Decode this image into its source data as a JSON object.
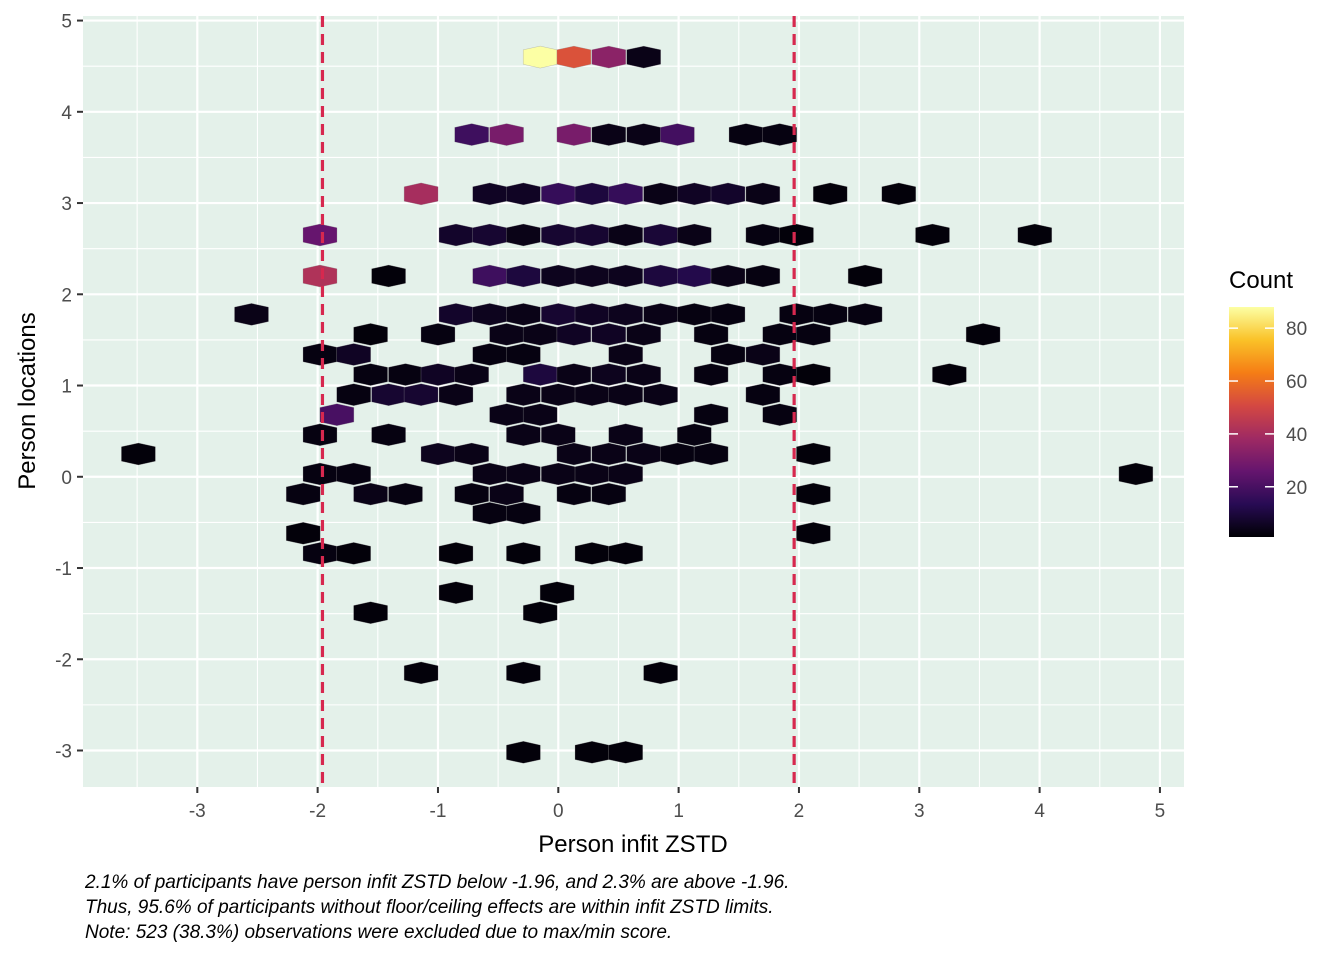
{
  "chart_data": {
    "type": "hexbin",
    "xlabel": "Person infit ZSTD",
    "ylabel": "Person locations",
    "xlim": [
      -3.95,
      5.2
    ],
    "ylim": [
      -3.4,
      5.05
    ],
    "x_ticks": [
      -3,
      -2,
      -1,
      0,
      1,
      2,
      3,
      4,
      5
    ],
    "y_ticks": [
      -3,
      -2,
      -1,
      0,
      1,
      2,
      3,
      4,
      5
    ],
    "x_tick_labels": [
      "-3",
      "-2",
      "-1",
      "0",
      "1",
      "2",
      "3",
      "4",
      "5"
    ],
    "y_tick_labels": [
      "-3",
      "-2",
      "-1",
      "0",
      "1",
      "2",
      "3",
      "4",
      "5"
    ],
    "reference_lines": [
      -1.96,
      1.96
    ],
    "reference_line_color": "#d7284f",
    "panel_background": "#e4f1ea",
    "grid": true,
    "legend": {
      "title": "Count",
      "position": "right",
      "breaks": [
        20,
        40,
        60,
        80
      ],
      "labels": [
        "20",
        "40",
        "60",
        "80"
      ],
      "min": 1,
      "max": 88,
      "palette": [
        "#000004",
        "#280b54",
        "#65156e",
        "#9f2a63",
        "#d44842",
        "#f57d15",
        "#fac228",
        "#fcffa4"
      ]
    },
    "bins": [
      {
        "x": -0.15,
        "y": 4.6,
        "count": 88
      },
      {
        "x": 0.13,
        "y": 4.6,
        "count": 53
      },
      {
        "x": 0.42,
        "y": 4.6,
        "count": 34
      },
      {
        "x": 0.71,
        "y": 4.6,
        "count": 4
      },
      {
        "x": -0.72,
        "y": 3.75,
        "count": 18
      },
      {
        "x": -0.43,
        "y": 3.75,
        "count": 30
      },
      {
        "x": 0.13,
        "y": 3.75,
        "count": 30
      },
      {
        "x": 0.42,
        "y": 3.75,
        "count": 4
      },
      {
        "x": 0.71,
        "y": 3.75,
        "count": 4
      },
      {
        "x": 0.99,
        "y": 3.75,
        "count": 19
      },
      {
        "x": 1.56,
        "y": 3.75,
        "count": 3
      },
      {
        "x": 1.84,
        "y": 3.75,
        "count": 3
      },
      {
        "x": -1.14,
        "y": 3.1,
        "count": 40
      },
      {
        "x": -0.57,
        "y": 3.1,
        "count": 6
      },
      {
        "x": -0.29,
        "y": 3.1,
        "count": 6
      },
      {
        "x": 0.0,
        "y": 3.1,
        "count": 16
      },
      {
        "x": 0.28,
        "y": 3.1,
        "count": 10
      },
      {
        "x": 0.56,
        "y": 3.1,
        "count": 16
      },
      {
        "x": 0.85,
        "y": 3.1,
        "count": 4
      },
      {
        "x": 1.13,
        "y": 3.1,
        "count": 6
      },
      {
        "x": 1.41,
        "y": 3.1,
        "count": 7
      },
      {
        "x": 1.7,
        "y": 3.1,
        "count": 4
      },
      {
        "x": 2.26,
        "y": 3.1,
        "count": 2
      },
      {
        "x": 2.83,
        "y": 3.1,
        "count": 2
      },
      {
        "x": -1.98,
        "y": 2.65,
        "count": 26
      },
      {
        "x": -0.85,
        "y": 2.65,
        "count": 7
      },
      {
        "x": -0.57,
        "y": 2.65,
        "count": 8
      },
      {
        "x": -0.29,
        "y": 2.65,
        "count": 4
      },
      {
        "x": 0.0,
        "y": 2.65,
        "count": 8
      },
      {
        "x": 0.28,
        "y": 2.65,
        "count": 8
      },
      {
        "x": 0.56,
        "y": 2.65,
        "count": 4
      },
      {
        "x": 0.85,
        "y": 2.65,
        "count": 9
      },
      {
        "x": 1.13,
        "y": 2.65,
        "count": 4
      },
      {
        "x": 1.7,
        "y": 2.65,
        "count": 3
      },
      {
        "x": 1.98,
        "y": 2.65,
        "count": 2
      },
      {
        "x": 3.11,
        "y": 2.65,
        "count": 2
      },
      {
        "x": 3.96,
        "y": 2.65,
        "count": 2
      },
      {
        "x": -1.98,
        "y": 2.2,
        "count": 42
      },
      {
        "x": -1.41,
        "y": 2.2,
        "count": 2
      },
      {
        "x": -0.57,
        "y": 2.2,
        "count": 18
      },
      {
        "x": -0.29,
        "y": 2.2,
        "count": 10
      },
      {
        "x": 0.0,
        "y": 2.2,
        "count": 5
      },
      {
        "x": 0.28,
        "y": 2.2,
        "count": 5
      },
      {
        "x": 0.56,
        "y": 2.2,
        "count": 5
      },
      {
        "x": 0.85,
        "y": 2.2,
        "count": 10
      },
      {
        "x": 1.13,
        "y": 2.2,
        "count": 12
      },
      {
        "x": 1.41,
        "y": 2.2,
        "count": 4
      },
      {
        "x": 1.7,
        "y": 2.2,
        "count": 3
      },
      {
        "x": 2.55,
        "y": 2.2,
        "count": 2
      },
      {
        "x": -2.55,
        "y": 1.78,
        "count": 4
      },
      {
        "x": -0.85,
        "y": 1.78,
        "count": 7
      },
      {
        "x": -0.57,
        "y": 1.78,
        "count": 5
      },
      {
        "x": -0.29,
        "y": 1.78,
        "count": 4
      },
      {
        "x": 0.0,
        "y": 1.78,
        "count": 8
      },
      {
        "x": 0.28,
        "y": 1.78,
        "count": 6
      },
      {
        "x": 0.56,
        "y": 1.78,
        "count": 5
      },
      {
        "x": 0.85,
        "y": 1.78,
        "count": 4
      },
      {
        "x": 1.13,
        "y": 1.78,
        "count": 3
      },
      {
        "x": 1.41,
        "y": 1.78,
        "count": 3
      },
      {
        "x": 1.98,
        "y": 1.78,
        "count": 3
      },
      {
        "x": 2.26,
        "y": 1.78,
        "count": 3
      },
      {
        "x": 2.55,
        "y": 1.78,
        "count": 3
      },
      {
        "x": -1.56,
        "y": 1.56,
        "count": 2
      },
      {
        "x": -1.0,
        "y": 1.56,
        "count": 3
      },
      {
        "x": -0.43,
        "y": 1.56,
        "count": 4
      },
      {
        "x": -0.15,
        "y": 1.56,
        "count": 4
      },
      {
        "x": 0.13,
        "y": 1.56,
        "count": 6
      },
      {
        "x": 0.42,
        "y": 1.56,
        "count": 6
      },
      {
        "x": 0.71,
        "y": 1.56,
        "count": 4
      },
      {
        "x": 1.27,
        "y": 1.56,
        "count": 3
      },
      {
        "x": 1.84,
        "y": 1.56,
        "count": 3
      },
      {
        "x": 2.12,
        "y": 1.56,
        "count": 3
      },
      {
        "x": 3.53,
        "y": 1.56,
        "count": 2
      },
      {
        "x": -1.98,
        "y": 1.34,
        "count": 3
      },
      {
        "x": -1.7,
        "y": 1.34,
        "count": 6
      },
      {
        "x": -0.57,
        "y": 1.34,
        "count": 3
      },
      {
        "x": -0.29,
        "y": 1.34,
        "count": 3
      },
      {
        "x": 0.56,
        "y": 1.34,
        "count": 4
      },
      {
        "x": 1.41,
        "y": 1.34,
        "count": 3
      },
      {
        "x": 1.7,
        "y": 1.34,
        "count": 4
      },
      {
        "x": -1.56,
        "y": 1.12,
        "count": 3
      },
      {
        "x": -1.27,
        "y": 1.12,
        "count": 3
      },
      {
        "x": -1.0,
        "y": 1.12,
        "count": 6
      },
      {
        "x": -0.72,
        "y": 1.12,
        "count": 4
      },
      {
        "x": -0.15,
        "y": 1.12,
        "count": 10
      },
      {
        "x": 0.13,
        "y": 1.12,
        "count": 4
      },
      {
        "x": 0.42,
        "y": 1.12,
        "count": 5
      },
      {
        "x": 0.71,
        "y": 1.12,
        "count": 4
      },
      {
        "x": 1.27,
        "y": 1.12,
        "count": 3
      },
      {
        "x": 1.84,
        "y": 1.12,
        "count": 3
      },
      {
        "x": 2.12,
        "y": 1.12,
        "count": 2
      },
      {
        "x": 3.25,
        "y": 1.12,
        "count": 2
      },
      {
        "x": -1.7,
        "y": 0.9,
        "count": 3
      },
      {
        "x": -1.41,
        "y": 0.9,
        "count": 8
      },
      {
        "x": -1.14,
        "y": 0.9,
        "count": 8
      },
      {
        "x": -0.85,
        "y": 0.9,
        "count": 4
      },
      {
        "x": -0.29,
        "y": 0.9,
        "count": 4
      },
      {
        "x": 0.0,
        "y": 0.9,
        "count": 4
      },
      {
        "x": 0.28,
        "y": 0.9,
        "count": 4
      },
      {
        "x": 0.56,
        "y": 0.9,
        "count": 4
      },
      {
        "x": 0.85,
        "y": 0.9,
        "count": 4
      },
      {
        "x": 1.7,
        "y": 0.9,
        "count": 3
      },
      {
        "x": -1.84,
        "y": 0.68,
        "count": 20
      },
      {
        "x": -0.43,
        "y": 0.68,
        "count": 4
      },
      {
        "x": -0.15,
        "y": 0.68,
        "count": 4
      },
      {
        "x": 1.27,
        "y": 0.68,
        "count": 3
      },
      {
        "x": 1.84,
        "y": 0.68,
        "count": 3
      },
      {
        "x": -1.98,
        "y": 0.46,
        "count": 3
      },
      {
        "x": -1.41,
        "y": 0.46,
        "count": 3
      },
      {
        "x": -0.29,
        "y": 0.46,
        "count": 4
      },
      {
        "x": 0.0,
        "y": 0.46,
        "count": 4
      },
      {
        "x": 0.56,
        "y": 0.46,
        "count": 4
      },
      {
        "x": 1.13,
        "y": 0.46,
        "count": 3
      },
      {
        "x": -3.49,
        "y": 0.25,
        "count": 2
      },
      {
        "x": -1.0,
        "y": 0.25,
        "count": 5
      },
      {
        "x": -0.72,
        "y": 0.25,
        "count": 4
      },
      {
        "x": 0.13,
        "y": 0.25,
        "count": 4
      },
      {
        "x": 0.42,
        "y": 0.25,
        "count": 4
      },
      {
        "x": 0.71,
        "y": 0.25,
        "count": 4
      },
      {
        "x": 0.99,
        "y": 0.25,
        "count": 3
      },
      {
        "x": 1.27,
        "y": 0.25,
        "count": 3
      },
      {
        "x": 2.12,
        "y": 0.25,
        "count": 2
      },
      {
        "x": -1.98,
        "y": 0.03,
        "count": 3
      },
      {
        "x": -1.7,
        "y": 0.03,
        "count": 3
      },
      {
        "x": -0.57,
        "y": 0.03,
        "count": 4
      },
      {
        "x": -0.29,
        "y": 0.03,
        "count": 4
      },
      {
        "x": 0.0,
        "y": 0.03,
        "count": 4
      },
      {
        "x": 0.28,
        "y": 0.03,
        "count": 4
      },
      {
        "x": 0.56,
        "y": 0.03,
        "count": 4
      },
      {
        "x": 4.8,
        "y": 0.03,
        "count": 2
      },
      {
        "x": -2.12,
        "y": -0.19,
        "count": 3
      },
      {
        "x": -1.56,
        "y": -0.19,
        "count": 4
      },
      {
        "x": -1.27,
        "y": -0.19,
        "count": 3
      },
      {
        "x": -0.72,
        "y": -0.19,
        "count": 3
      },
      {
        "x": -0.43,
        "y": -0.19,
        "count": 4
      },
      {
        "x": 0.13,
        "y": -0.19,
        "count": 3
      },
      {
        "x": 0.42,
        "y": -0.19,
        "count": 3
      },
      {
        "x": 2.12,
        "y": -0.19,
        "count": 2
      },
      {
        "x": -0.57,
        "y": -0.4,
        "count": 3
      },
      {
        "x": -0.29,
        "y": -0.4,
        "count": 3
      },
      {
        "x": -2.12,
        "y": -0.62,
        "count": 2
      },
      {
        "x": 2.12,
        "y": -0.62,
        "count": 2
      },
      {
        "x": -1.98,
        "y": -0.84,
        "count": 3
      },
      {
        "x": -1.7,
        "y": -0.84,
        "count": 2
      },
      {
        "x": -0.85,
        "y": -0.84,
        "count": 2
      },
      {
        "x": -0.29,
        "y": -0.84,
        "count": 2
      },
      {
        "x": 0.28,
        "y": -0.84,
        "count": 2
      },
      {
        "x": 0.56,
        "y": -0.84,
        "count": 2
      },
      {
        "x": -0.85,
        "y": -1.27,
        "count": 2
      },
      {
        "x": -0.01,
        "y": -1.27,
        "count": 2
      },
      {
        "x": -1.56,
        "y": -1.49,
        "count": 2
      },
      {
        "x": -0.15,
        "y": -1.49,
        "count": 2
      },
      {
        "x": -1.14,
        "y": -2.15,
        "count": 2
      },
      {
        "x": -0.29,
        "y": -2.15,
        "count": 2
      },
      {
        "x": 0.85,
        "y": -2.15,
        "count": 2
      },
      {
        "x": -0.29,
        "y": -3.02,
        "count": 2
      },
      {
        "x": 0.28,
        "y": -3.02,
        "count": 2
      },
      {
        "x": 0.56,
        "y": -3.02,
        "count": 2
      }
    ]
  },
  "caption": {
    "line1": "2.1% of participants have person infit ZSTD below -1.96, and 2.3% are above -1.96.",
    "line2": "Thus, 95.6% of participants without floor/ceiling effects are within infit ZSTD limits.",
    "line3": "Note: 523 (38.3%) observations were excluded due to max/min score."
  }
}
